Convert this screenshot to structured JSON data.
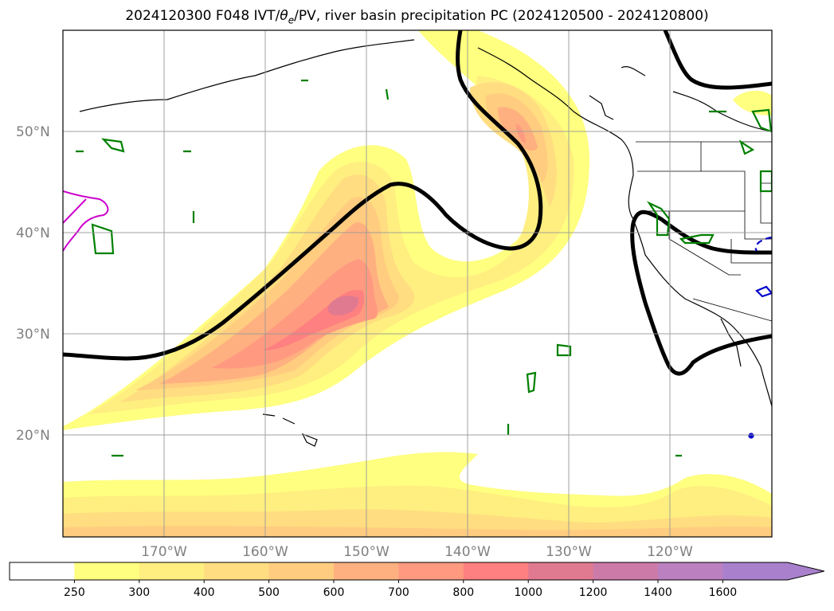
{
  "title": "2024120300 F048 IVT/θe/PV, river basin precipitation PC (2024120500 - 2024120800)",
  "title_parts": {
    "pre": "2024120300 F048 IVT/",
    "theta": "θ",
    "sub": "e",
    "post": "/PV, river basin precipitation PC (2024120500 - 2024120800)"
  },
  "lat_labels": [
    "50°N",
    "40°N",
    "30°N",
    "20°N"
  ],
  "lon_labels": [
    "170°W",
    "160°W",
    "150°W",
    "140°W",
    "130°W",
    "120°W"
  ],
  "colorbar": {
    "ticks": [
      "250",
      "300",
      "400",
      "500",
      "600",
      "700",
      "800",
      "1000",
      "1200",
      "1400",
      "1600"
    ],
    "colors": [
      "#ffffff",
      "#ffff80",
      "#ffee80",
      "#ffdd80",
      "#ffcc80",
      "#ffb080",
      "#ff9a80",
      "#ff8080",
      "#e07a90",
      "#cc7aa8",
      "#bb80c0",
      "#a880cc"
    ],
    "extend": "max"
  }
}
